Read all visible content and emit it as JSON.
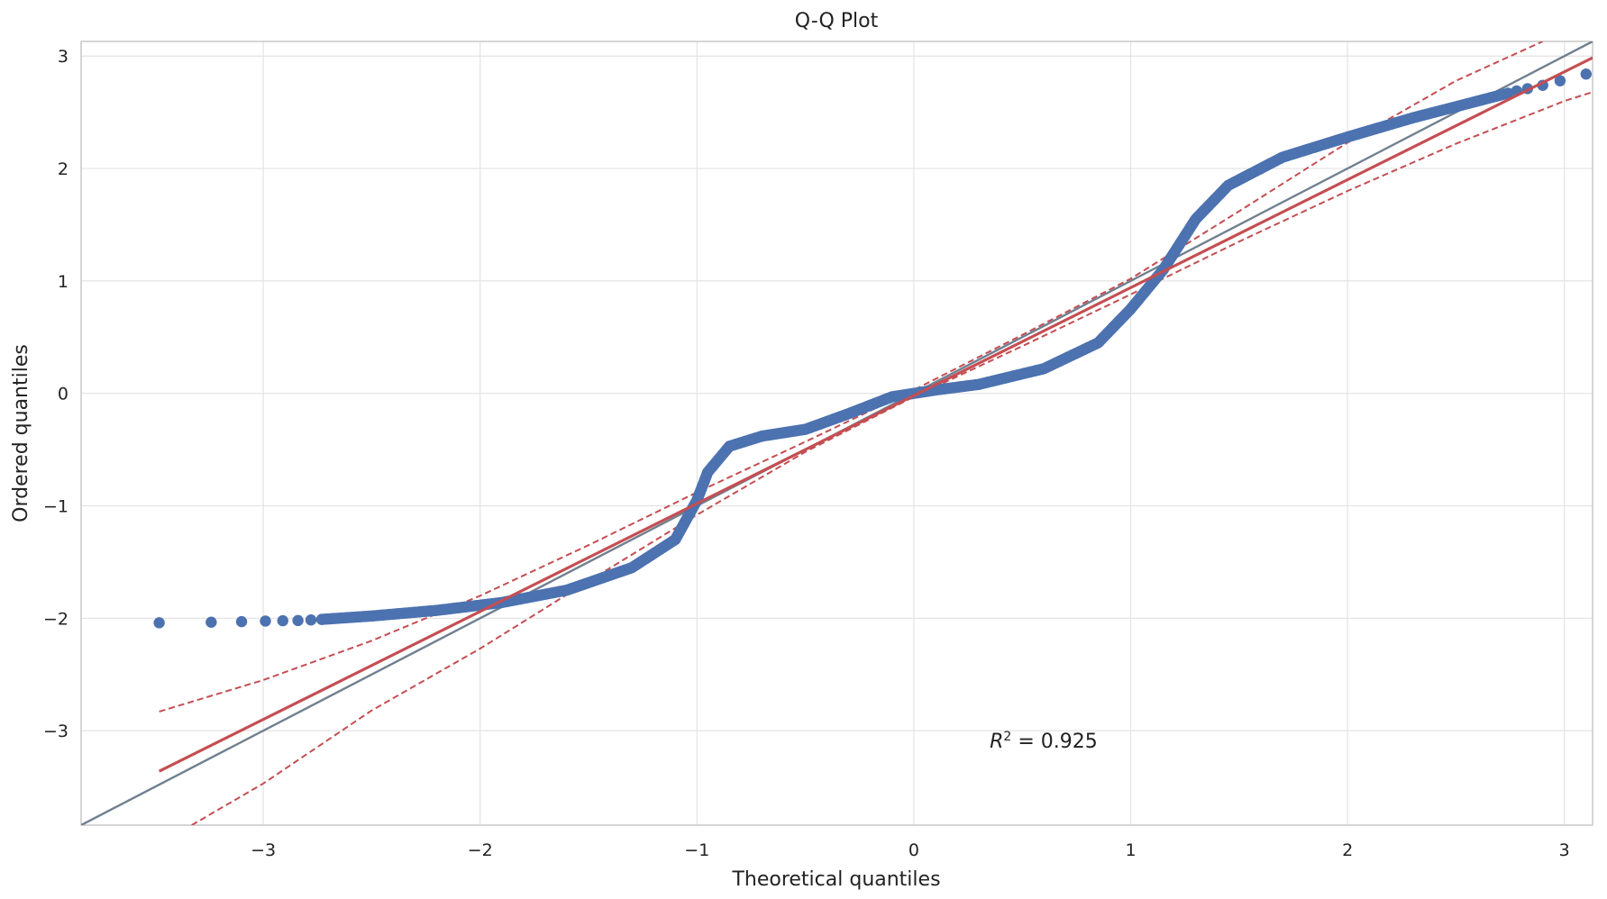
{
  "chart_data": {
    "type": "scatter",
    "title": "Q-Q Plot",
    "xlabel": "Theoretical quantiles",
    "ylabel": "Ordered quantiles",
    "xlim": [
      -3.84,
      3.13
    ],
    "ylim": [
      -3.84,
      3.13
    ],
    "grid": true,
    "x_ticks": [
      {
        "value": -3,
        "label": "−3"
      },
      {
        "value": -2,
        "label": "−2"
      },
      {
        "value": -1,
        "label": "−1"
      },
      {
        "value": 0,
        "label": "0"
      },
      {
        "value": 1,
        "label": "1"
      },
      {
        "value": 2,
        "label": "2"
      },
      {
        "value": 3,
        "label": "3"
      }
    ],
    "y_ticks": [
      {
        "value": -3,
        "label": "−3"
      },
      {
        "value": -2,
        "label": "−2"
      },
      {
        "value": -1,
        "label": "−1"
      },
      {
        "value": 0,
        "label": "0"
      },
      {
        "value": 1,
        "label": "1"
      },
      {
        "value": 2,
        "label": "2"
      },
      {
        "value": 3,
        "label": "3"
      }
    ],
    "annotation": {
      "r_symbol": "R",
      "exponent": "2",
      "value_text": " = 0.925",
      "x": 0.35,
      "y": -3.15
    },
    "points": [
      [
        -3.48,
        -2.04
      ],
      [
        -3.24,
        -2.035
      ],
      [
        -3.1,
        -2.03
      ],
      [
        -2.99,
        -2.025
      ],
      [
        -2.91,
        -2.022
      ],
      [
        -2.84,
        -2.02
      ],
      [
        -2.78,
        -2.015
      ],
      [
        -2.73,
        -2.01
      ]
    ],
    "curve_knots": [
      [
        -2.73,
        -2.01
      ],
      [
        -2.5,
        -1.98
      ],
      [
        -2.2,
        -1.93
      ],
      [
        -1.9,
        -1.86
      ],
      [
        -1.6,
        -1.75
      ],
      [
        -1.3,
        -1.55
      ],
      [
        -1.1,
        -1.3
      ],
      [
        -1.0,
        -0.95
      ],
      [
        -0.95,
        -0.7
      ],
      [
        -0.85,
        -0.47
      ],
      [
        -0.7,
        -0.38
      ],
      [
        -0.5,
        -0.32
      ],
      [
        -0.3,
        -0.18
      ],
      [
        -0.1,
        -0.03
      ],
      [
        0.1,
        0.03
      ],
      [
        0.3,
        0.08
      ],
      [
        0.6,
        0.22
      ],
      [
        0.85,
        0.45
      ],
      [
        1.0,
        0.75
      ],
      [
        1.15,
        1.1
      ],
      [
        1.3,
        1.55
      ],
      [
        1.45,
        1.85
      ],
      [
        1.7,
        2.1
      ],
      [
        2.0,
        2.28
      ],
      [
        2.3,
        2.45
      ],
      [
        2.6,
        2.6
      ],
      [
        2.72,
        2.66
      ]
    ],
    "tail_points": [
      [
        2.74,
        2.67
      ],
      [
        2.78,
        2.69
      ],
      [
        2.83,
        2.71
      ],
      [
        2.9,
        2.74
      ],
      [
        2.98,
        2.78
      ],
      [
        3.1,
        2.84
      ]
    ],
    "reference_line": {
      "x": [
        -3.84,
        3.13
      ],
      "y": [
        -3.84,
        3.13
      ]
    },
    "fit_line": {
      "slope": 0.96,
      "intercept": -0.02,
      "x": [
        -3.48,
        3.13
      ]
    },
    "confidence_upper": [
      [
        -3.48,
        -2.83
      ],
      [
        -3.0,
        -2.55
      ],
      [
        -2.5,
        -2.2
      ],
      [
        -2.0,
        -1.8
      ],
      [
        -1.5,
        -1.35
      ],
      [
        -1.0,
        -0.88
      ],
      [
        -0.5,
        -0.43
      ],
      [
        0.0,
        0.03
      ],
      [
        0.5,
        0.52
      ],
      [
        1.0,
        1.02
      ],
      [
        1.5,
        1.62
      ],
      [
        2.0,
        2.23
      ],
      [
        2.5,
        2.78
      ],
      [
        2.9,
        3.13
      ]
    ],
    "confidence_lower": [
      [
        -3.33,
        -3.84
      ],
      [
        -3.0,
        -3.47
      ],
      [
        -2.5,
        -2.82
      ],
      [
        -2.0,
        -2.27
      ],
      [
        -1.5,
        -1.67
      ],
      [
        -1.0,
        -1.08
      ],
      [
        -0.5,
        -0.52
      ],
      [
        0.0,
        -0.03
      ],
      [
        0.5,
        0.42
      ],
      [
        1.0,
        0.88
      ],
      [
        1.5,
        1.35
      ],
      [
        2.0,
        1.8
      ],
      [
        2.5,
        2.22
      ],
      [
        3.0,
        2.6
      ],
      [
        3.13,
        2.68
      ]
    ],
    "colors": {
      "points": "#4c72b0",
      "fit_line": "#c44e52",
      "reference_line": "#708090",
      "grid": "#e3e3e3",
      "frame": "#cccccc"
    }
  }
}
